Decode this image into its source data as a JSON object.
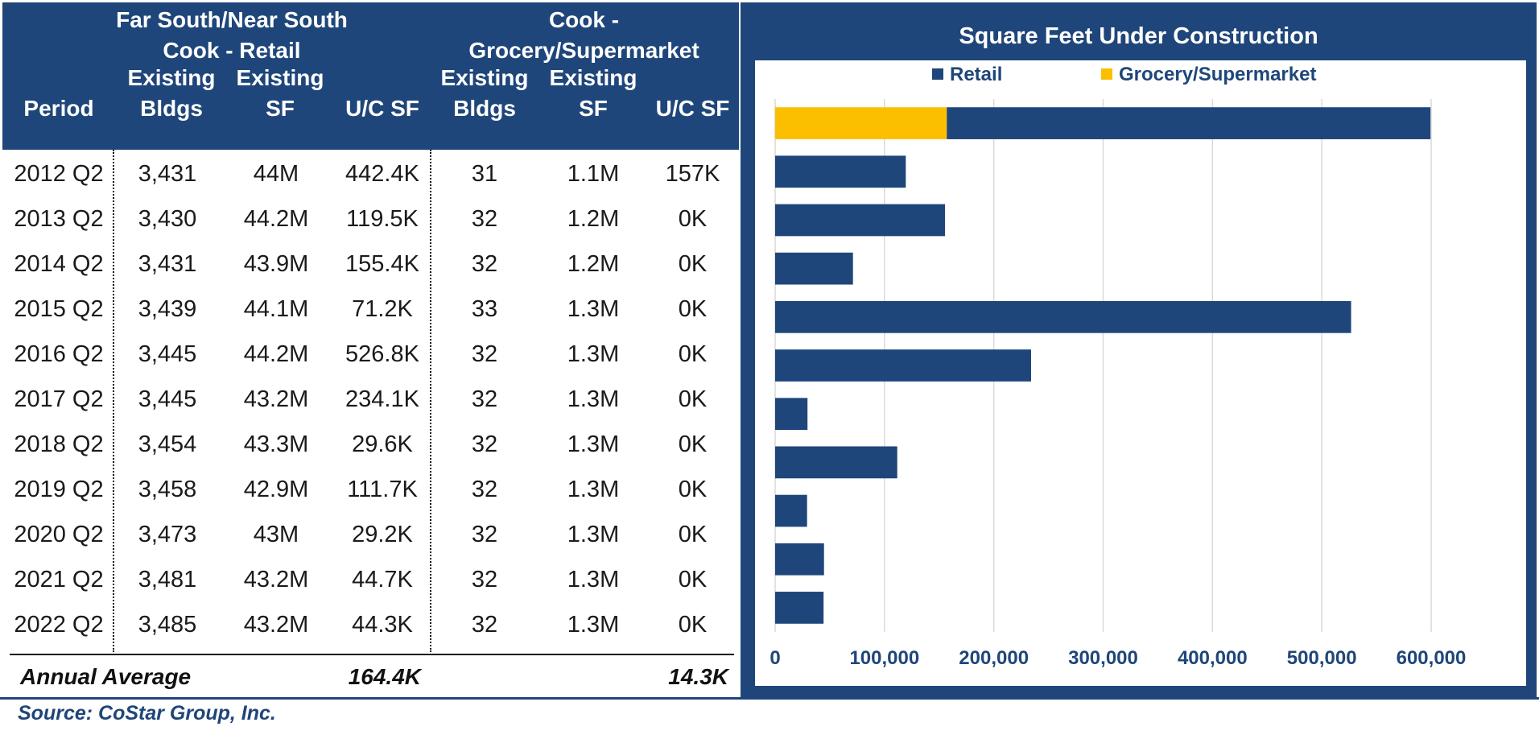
{
  "table": {
    "group_retail": [
      "Far South/Near South",
      "Cook - Retail"
    ],
    "group_grocery": [
      "Cook -",
      "Grocery/Supermarket"
    ],
    "col_period": "Period",
    "col_bldgs": [
      "Existing",
      "Bldgs"
    ],
    "col_sf": [
      "Existing",
      "SF"
    ],
    "col_uc": "U/C SF",
    "rows": [
      {
        "period": "2012 Q2",
        "r_bldgs": "3,431",
        "r_sf": "44M",
        "r_uc": "442.4K",
        "g_bldgs": "31",
        "g_sf": "1.1M",
        "g_uc": "157K"
      },
      {
        "period": "2013 Q2",
        "r_bldgs": "3,430",
        "r_sf": "44.2M",
        "r_uc": "119.5K",
        "g_bldgs": "32",
        "g_sf": "1.2M",
        "g_uc": "0K"
      },
      {
        "period": "2014 Q2",
        "r_bldgs": "3,431",
        "r_sf": "43.9M",
        "r_uc": "155.4K",
        "g_bldgs": "32",
        "g_sf": "1.2M",
        "g_uc": "0K"
      },
      {
        "period": "2015 Q2",
        "r_bldgs": "3,439",
        "r_sf": "44.1M",
        "r_uc": "71.2K",
        "g_bldgs": "33",
        "g_sf": "1.3M",
        "g_uc": "0K"
      },
      {
        "period": "2016 Q2",
        "r_bldgs": "3,445",
        "r_sf": "44.2M",
        "r_uc": "526.8K",
        "g_bldgs": "32",
        "g_sf": "1.3M",
        "g_uc": "0K"
      },
      {
        "period": "2017 Q2",
        "r_bldgs": "3,445",
        "r_sf": "43.2M",
        "r_uc": "234.1K",
        "g_bldgs": "32",
        "g_sf": "1.3M",
        "g_uc": "0K"
      },
      {
        "period": "2018 Q2",
        "r_bldgs": "3,454",
        "r_sf": "43.3M",
        "r_uc": "29.6K",
        "g_bldgs": "32",
        "g_sf": "1.3M",
        "g_uc": "0K"
      },
      {
        "period": "2019 Q2",
        "r_bldgs": "3,458",
        "r_sf": "42.9M",
        "r_uc": "111.7K",
        "g_bldgs": "32",
        "g_sf": "1.3M",
        "g_uc": "0K"
      },
      {
        "period": "2020 Q2",
        "r_bldgs": "3,473",
        "r_sf": "43M",
        "r_uc": "29.2K",
        "g_bldgs": "32",
        "g_sf": "1.3M",
        "g_uc": "0K"
      },
      {
        "period": "2021 Q2",
        "r_bldgs": "3,481",
        "r_sf": "43.2M",
        "r_uc": "44.7K",
        "g_bldgs": "32",
        "g_sf": "1.3M",
        "g_uc": "0K"
      },
      {
        "period": "2022 Q2",
        "r_bldgs": "3,485",
        "r_sf": "43.2M",
        "r_uc": "44.3K",
        "g_bldgs": "32",
        "g_sf": "1.3M",
        "g_uc": "0K"
      }
    ],
    "avg_label": "Annual Average",
    "avg_retail_uc": "164.4K",
    "avg_grocery_uc": "14.3K"
  },
  "source": "Source:  CoStar Group, Inc.",
  "colors": {
    "navy": "#1f467a",
    "retail": "#1f467a",
    "grocery": "#fbbf00"
  },
  "chart_data": {
    "type": "bar",
    "orientation": "horizontal",
    "stacked": true,
    "title": "Square Feet Under Construction",
    "categories": [
      "2012 Q2",
      "2013 Q2",
      "2014 Q2",
      "2015 Q2",
      "2016 Q2",
      "2017 Q2",
      "2018 Q2",
      "2019 Q2",
      "2020 Q2",
      "2021 Q2",
      "2022 Q2"
    ],
    "series": [
      {
        "name": "Grocery/Supermarket",
        "color": "#fbbf00",
        "values": [
          157000,
          0,
          0,
          0,
          0,
          0,
          0,
          0,
          0,
          0,
          0
        ]
      },
      {
        "name": "Retail",
        "color": "#1f467a",
        "values": [
          442400,
          119500,
          155400,
          71200,
          526800,
          234100,
          29600,
          111700,
          29200,
          44700,
          44300
        ]
      }
    ],
    "legend": [
      "Retail",
      "Grocery/Supermarket"
    ],
    "legend_position": "top",
    "xlim": [
      0,
      600000
    ],
    "xticks": [
      0,
      100000,
      200000,
      300000,
      400000,
      500000,
      600000
    ],
    "xtick_labels": [
      "0",
      "100,000",
      "200,000",
      "300,000",
      "400,000",
      "500,000",
      "600,000"
    ],
    "grid": true
  }
}
